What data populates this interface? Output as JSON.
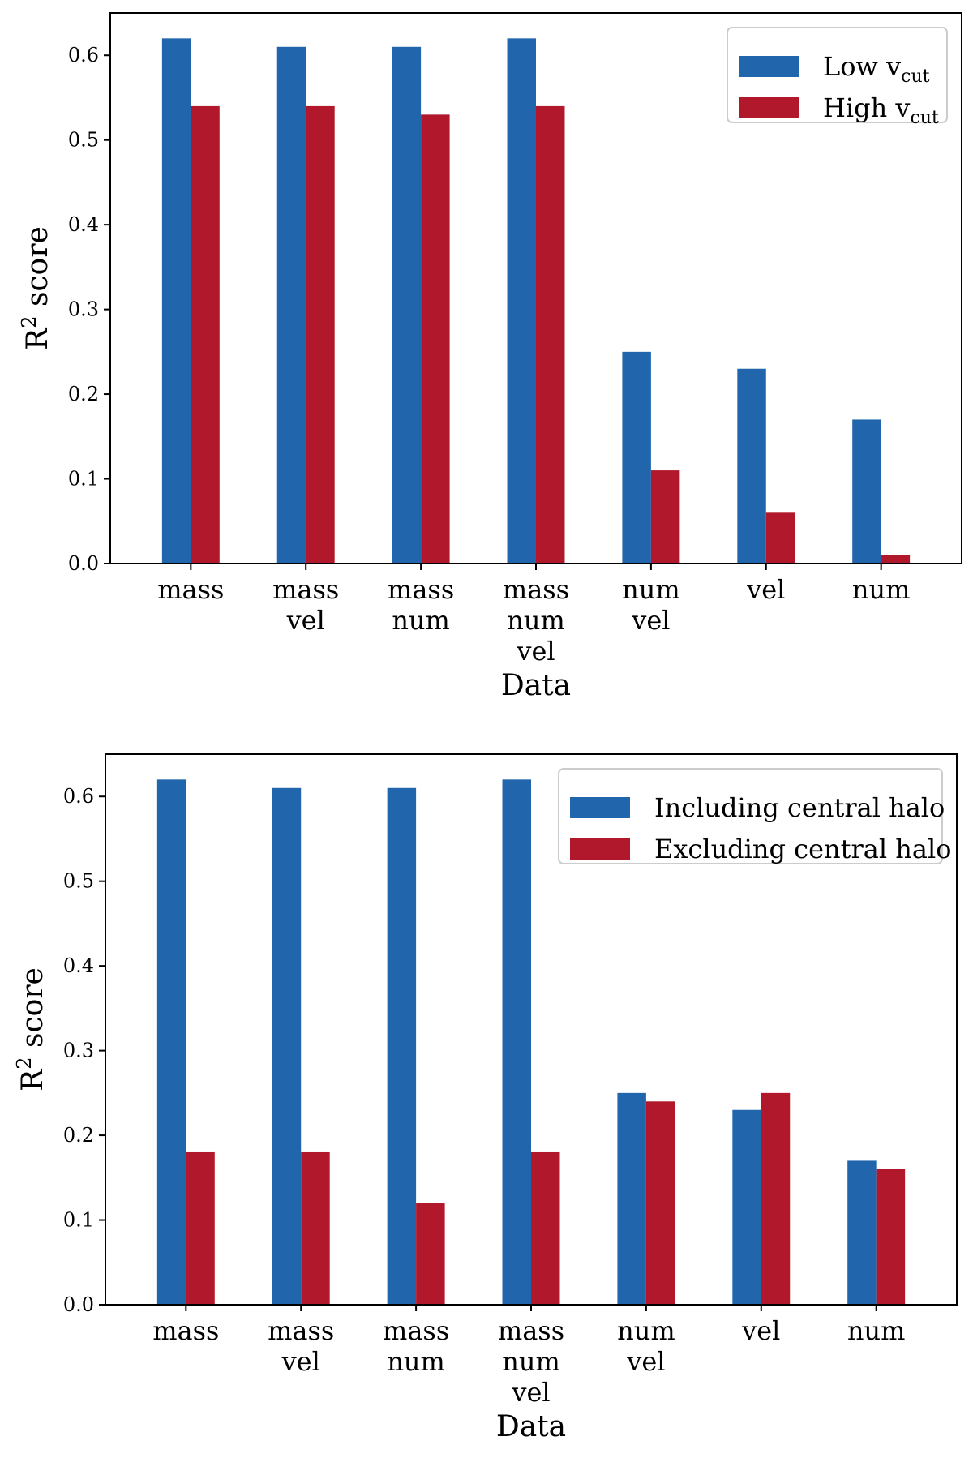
{
  "chart_data": [
    {
      "type": "bar",
      "categories": [
        [
          "mass"
        ],
        [
          "mass",
          "vel"
        ],
        [
          "mass",
          "num"
        ],
        [
          "mass",
          "num",
          "vel"
        ],
        [
          "num",
          "vel"
        ],
        [
          "vel"
        ],
        [
          "num"
        ]
      ],
      "series": [
        {
          "name": "Low v",
          "subscript": "cut",
          "color": "#2166ac",
          "values": [
            0.62,
            0.61,
            0.61,
            0.62,
            0.25,
            0.23,
            0.17
          ]
        },
        {
          "name": "High v",
          "subscript": "cut",
          "color": "#b2182b",
          "values": [
            0.54,
            0.54,
            0.53,
            0.54,
            0.11,
            0.06,
            0.01
          ]
        }
      ],
      "xlabel": "Data",
      "ylabel": "R",
      "ylabel_superscript": "2",
      "ylabel_suffix": " score",
      "ylim": [
        0,
        0.65
      ],
      "yticks": [
        "0.0",
        "0.1",
        "0.2",
        "0.3",
        "0.4",
        "0.5",
        "0.6"
      ],
      "legend": "top-right"
    },
    {
      "type": "bar",
      "categories": [
        [
          "mass"
        ],
        [
          "mass",
          "vel"
        ],
        [
          "mass",
          "num"
        ],
        [
          "mass",
          "num",
          "vel"
        ],
        [
          "num",
          "vel"
        ],
        [
          "vel"
        ],
        [
          "num"
        ]
      ],
      "series": [
        {
          "name": "Including central halo",
          "subscript": "",
          "color": "#2166ac",
          "values": [
            0.62,
            0.61,
            0.61,
            0.62,
            0.25,
            0.23,
            0.17
          ]
        },
        {
          "name": "Excluding central halo",
          "subscript": "",
          "color": "#b2182b",
          "values": [
            0.18,
            0.18,
            0.12,
            0.18,
            0.24,
            0.25,
            0.16
          ]
        }
      ],
      "xlabel": "Data",
      "ylabel": "R",
      "ylabel_superscript": "2",
      "ylabel_suffix": " score",
      "ylim": [
        0,
        0.65
      ],
      "yticks": [
        "0.0",
        "0.1",
        "0.2",
        "0.3",
        "0.4",
        "0.5",
        "0.6"
      ],
      "legend": "top-right"
    }
  ]
}
